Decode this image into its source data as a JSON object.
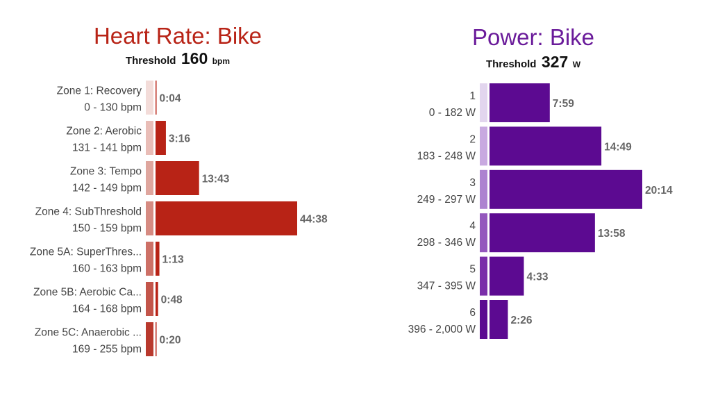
{
  "colors": {
    "hr_title": "#b82316",
    "pw_title": "#6a1b9a",
    "hr_bar": "#b82316",
    "pw_bar": "#5c0a91",
    "hr_swatches": [
      "#f3dcd9",
      "#e9bdb7",
      "#dfa69e",
      "#d68b82",
      "#cd7066",
      "#c3554a",
      "#b9392d"
    ],
    "pw_swatches": [
      "#e2d5ee",
      "#c8a9e0",
      "#ad82d0",
      "#9457bd",
      "#7a2ea9",
      "#5c0a91"
    ]
  },
  "chart_data": [
    {
      "type": "bar",
      "orientation": "horizontal",
      "title": "Heart Rate: Bike",
      "threshold_label": "Threshold",
      "threshold_value": "160",
      "threshold_unit": "bpm",
      "categories": [
        {
          "name": "Zone 1: Recovery",
          "range": "0 - 130 bpm"
        },
        {
          "name": "Zone 2: Aerobic",
          "range": "131 - 141 bpm"
        },
        {
          "name": "Zone 3: Tempo",
          "range": "142 - 149 bpm"
        },
        {
          "name": "Zone 4: SubThreshold",
          "range": "150 - 159 bpm"
        },
        {
          "name": "Zone 5A: SuperThres...",
          "range": "160 - 163 bpm"
        },
        {
          "name": "Zone 5B: Aerobic Ca...",
          "range": "164 - 168 bpm"
        },
        {
          "name": "Zone 5C: Anaerobic ...",
          "range": "169 - 255 bpm"
        }
      ],
      "values": [
        0.067,
        3.267,
        13.717,
        44.633,
        1.217,
        0.8,
        0.333
      ],
      "value_labels": [
        "0:04",
        "3:16",
        "13:43",
        "44:38",
        "1:13",
        "0:48",
        "0:20"
      ],
      "value_unit": "minutes"
    },
    {
      "type": "bar",
      "orientation": "horizontal",
      "title": "Power: Bike",
      "threshold_label": "Threshold",
      "threshold_value": "327",
      "threshold_unit": "W",
      "categories": [
        {
          "name": "1",
          "range": "0 - 182 W"
        },
        {
          "name": "2",
          "range": "183 - 248 W"
        },
        {
          "name": "3",
          "range": "249 - 297 W"
        },
        {
          "name": "4",
          "range": "298 - 346 W"
        },
        {
          "name": "5",
          "range": "347 - 395 W"
        },
        {
          "name": "6",
          "range": "396 - 2,000 W"
        }
      ],
      "values": [
        7.983,
        14.817,
        20.233,
        13.967,
        4.55,
        2.433
      ],
      "value_labels": [
        "7:59",
        "14:49",
        "20:14",
        "13:58",
        "4:33",
        "2:26"
      ],
      "value_unit": "minutes"
    }
  ]
}
